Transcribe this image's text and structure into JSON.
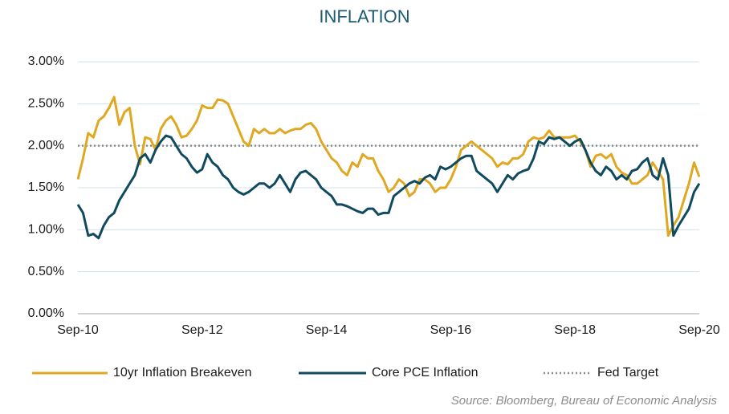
{
  "chart_data": {
    "type": "line",
    "title": "INFLATION",
    "source": "Source: Bloomberg, Bureau of Economic Analysis",
    "categories": [
      "Sep-10",
      null,
      null,
      null,
      null,
      null,
      null,
      null,
      null,
      null,
      null,
      null,
      null,
      null,
      null,
      null,
      null,
      null,
      null,
      null,
      null,
      null,
      null,
      null,
      "Sep-12",
      null,
      null,
      null,
      null,
      null,
      null,
      null,
      null,
      null,
      null,
      null,
      null,
      null,
      null,
      null,
      null,
      null,
      null,
      null,
      null,
      null,
      null,
      null,
      "Sep-14",
      null,
      null,
      null,
      null,
      null,
      null,
      null,
      null,
      null,
      null,
      null,
      null,
      null,
      null,
      null,
      null,
      null,
      null,
      null,
      null,
      null,
      null,
      null,
      "Sep-16",
      null,
      null,
      null,
      null,
      null,
      null,
      null,
      null,
      null,
      null,
      null,
      null,
      null,
      null,
      null,
      null,
      null,
      null,
      null,
      null,
      null,
      null,
      null,
      "Sep-18",
      null,
      null,
      null,
      null,
      null,
      null,
      null,
      null,
      null,
      null,
      null,
      null,
      null,
      null,
      null,
      null,
      null,
      null,
      null,
      null,
      null,
      null,
      null,
      "Sep-20"
    ],
    "series": [
      {
        "name": "10yr Inflation Breakeven",
        "color": "#e0a820",
        "values": [
          1.6,
          1.85,
          2.15,
          2.1,
          2.3,
          2.35,
          2.45,
          2.58,
          2.25,
          2.4,
          2.45,
          2.0,
          1.78,
          2.1,
          2.08,
          1.95,
          2.2,
          2.3,
          2.35,
          2.25,
          2.1,
          2.12,
          2.2,
          2.3,
          2.48,
          2.45,
          2.45,
          2.55,
          2.54,
          2.5,
          2.35,
          2.2,
          2.05,
          2.0,
          2.2,
          2.15,
          2.2,
          2.15,
          2.15,
          2.2,
          2.15,
          2.18,
          2.2,
          2.2,
          2.25,
          2.27,
          2.2,
          2.05,
          1.95,
          1.85,
          1.8,
          1.7,
          1.65,
          1.8,
          1.75,
          1.9,
          1.85,
          1.85,
          1.7,
          1.6,
          1.45,
          1.5,
          1.6,
          1.55,
          1.4,
          1.45,
          1.6,
          1.6,
          1.55,
          1.45,
          1.5,
          1.5,
          1.6,
          1.75,
          1.95,
          2.0,
          2.05,
          2.0,
          1.95,
          1.9,
          1.85,
          1.75,
          1.8,
          1.78,
          1.85,
          1.85,
          1.9,
          2.05,
          2.1,
          2.08,
          2.1,
          2.18,
          2.1,
          2.1,
          2.1,
          2.1,
          2.12,
          2.05,
          1.95,
          1.75,
          1.88,
          1.9,
          1.85,
          1.9,
          1.75,
          1.68,
          1.65,
          1.55,
          1.55,
          1.6,
          1.65,
          1.8,
          1.7,
          1.6,
          0.93,
          1.05,
          1.15,
          1.35,
          1.55,
          1.8,
          1.63
        ]
      },
      {
        "name": "Core PCE Inflation",
        "color": "#0f4a5e",
        "values": [
          1.3,
          1.2,
          0.93,
          0.95,
          0.9,
          1.05,
          1.15,
          1.2,
          1.35,
          1.45,
          1.55,
          1.65,
          1.85,
          1.9,
          1.8,
          1.95,
          2.05,
          2.12,
          2.1,
          2.0,
          1.9,
          1.85,
          1.75,
          1.68,
          1.72,
          1.9,
          1.8,
          1.75,
          1.65,
          1.6,
          1.5,
          1.45,
          1.42,
          1.45,
          1.5,
          1.55,
          1.55,
          1.5,
          1.55,
          1.65,
          1.55,
          1.45,
          1.6,
          1.68,
          1.7,
          1.65,
          1.6,
          1.5,
          1.45,
          1.4,
          1.3,
          1.3,
          1.28,
          1.25,
          1.22,
          1.2,
          1.25,
          1.25,
          1.18,
          1.2,
          1.2,
          1.4,
          1.45,
          1.5,
          1.55,
          1.58,
          1.55,
          1.62,
          1.65,
          1.6,
          1.75,
          1.72,
          1.75,
          1.8,
          1.85,
          1.88,
          1.88,
          1.7,
          1.65,
          1.6,
          1.55,
          1.45,
          1.55,
          1.65,
          1.6,
          1.67,
          1.7,
          1.72,
          1.85,
          2.05,
          2.02,
          2.1,
          2.08,
          2.1,
          2.05,
          2.0,
          2.05,
          2.08,
          1.95,
          1.8,
          1.7,
          1.65,
          1.75,
          1.7,
          1.6,
          1.65,
          1.6,
          1.7,
          1.72,
          1.8,
          1.85,
          1.65,
          1.6,
          1.85,
          1.65,
          0.93,
          1.05,
          1.15,
          1.25,
          1.45,
          1.55
        ]
      }
    ],
    "reference_line": {
      "name": "Fed Target",
      "value": 2.0,
      "color": "#8c8c8c"
    },
    "ylim": [
      0,
      3
    ],
    "yticks": [
      {
        "value": 0,
        "label": "0.00%"
      },
      {
        "value": 0.5,
        "label": "0.50%"
      },
      {
        "value": 1,
        "label": "1.00%"
      },
      {
        "value": 1.5,
        "label": "1.50%"
      },
      {
        "value": 2,
        "label": "2.00%"
      },
      {
        "value": 2.5,
        "label": "2.50%"
      },
      {
        "value": 3,
        "label": "3.00%"
      }
    ],
    "grid": true,
    "legend": "bottom"
  }
}
